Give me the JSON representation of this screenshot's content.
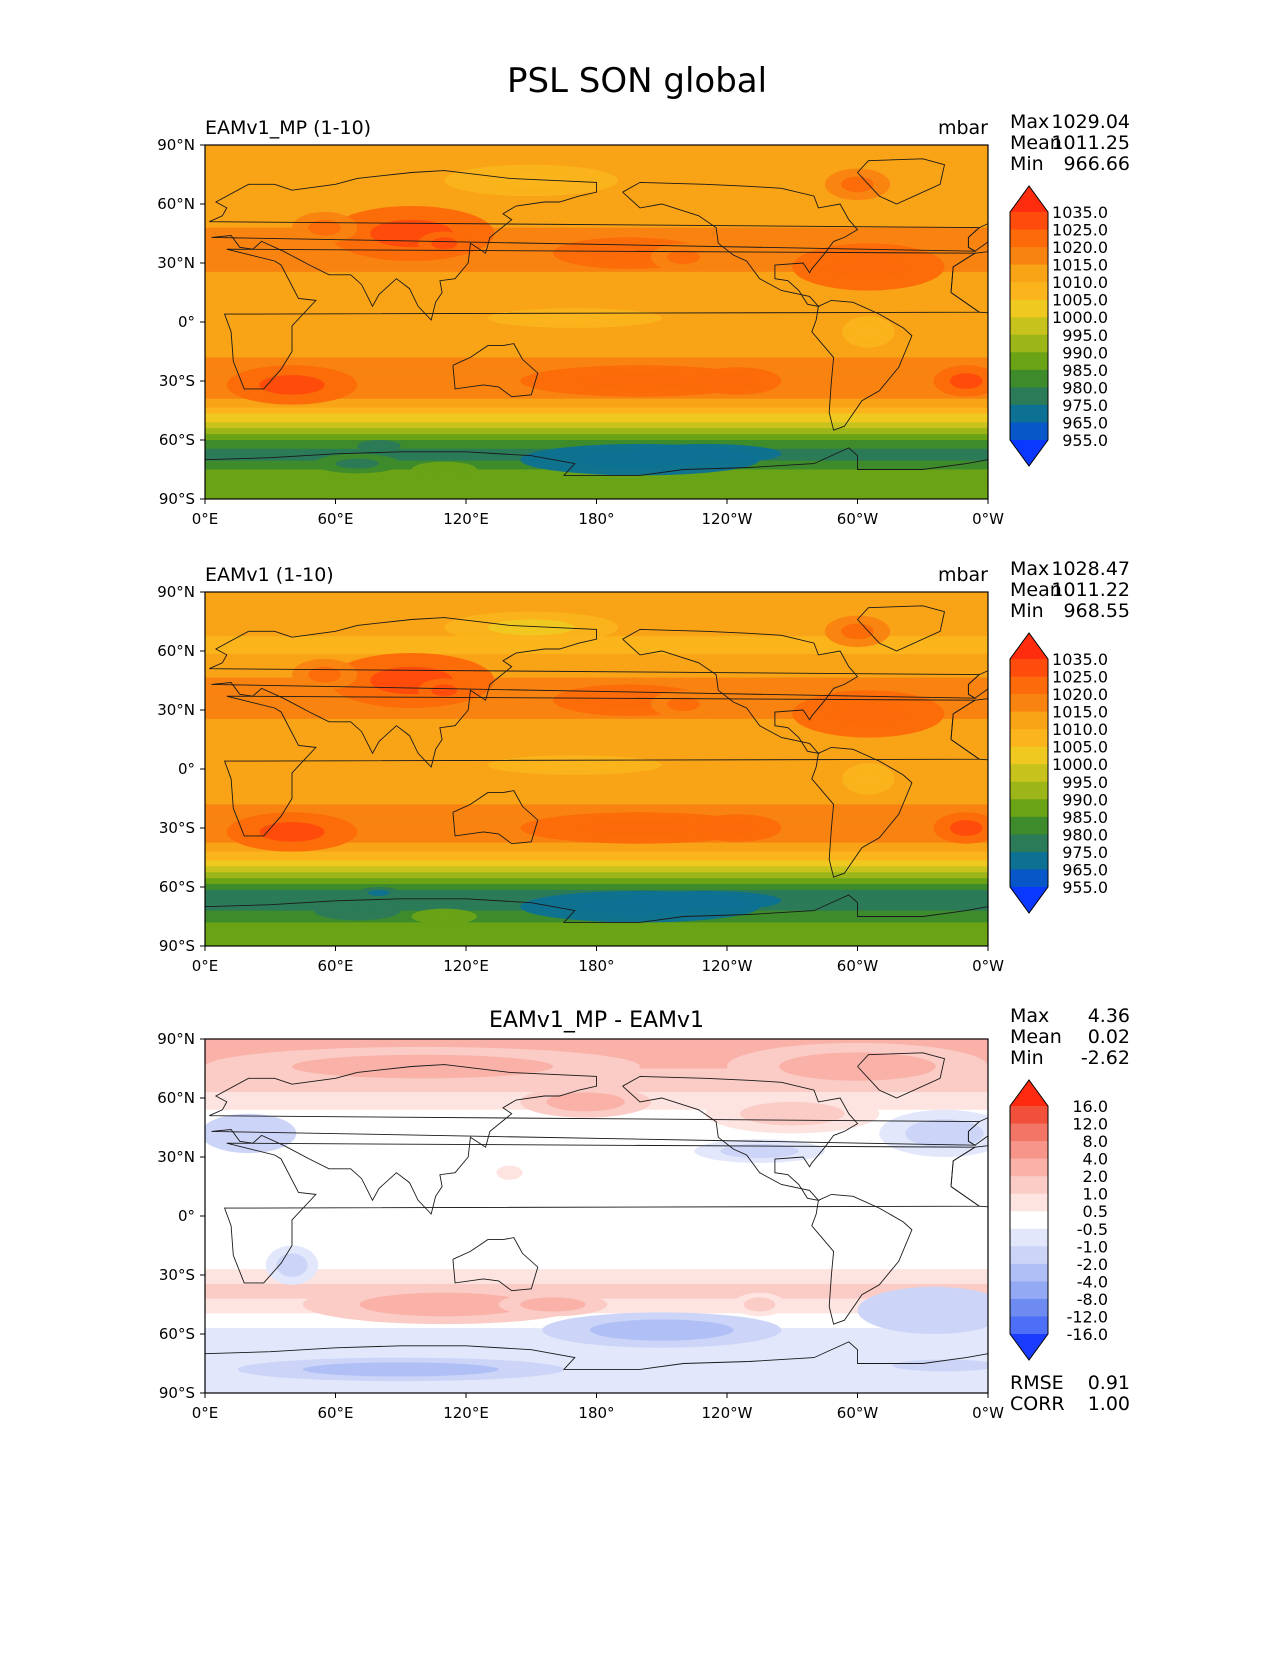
{
  "figure_title": "PSL SON global",
  "chart_data": [
    {
      "type": "heatmap",
      "title": "EAMv1_MP (1-10)",
      "units": "mbar",
      "xlabel": "",
      "ylabel": "",
      "x_ticks": [
        "0°E",
        "60°E",
        "120°E",
        "180°",
        "120°W",
        "60°W",
        "0°W"
      ],
      "y_ticks": [
        "90°N",
        "60°N",
        "30°N",
        "0°",
        "30°S",
        "60°S",
        "90°S"
      ],
      "xlim": [
        0,
        360
      ],
      "ylim": [
        -90,
        90
      ],
      "stats": [
        {
          "label": "Max",
          "value": "1029.04"
        },
        {
          "label": "Mean",
          "value": "1011.25"
        },
        {
          "label": "Min",
          "value": "966.66"
        }
      ],
      "colorbar": {
        "levels": [
          "1035.0",
          "1025.0",
          "1020.0",
          "1015.0",
          "1010.0",
          "1005.0",
          "1000.0",
          "995.0",
          "990.0",
          "985.0",
          "980.0",
          "975.0",
          "965.0",
          "955.0"
        ],
        "colors": [
          "#ff2d0e",
          "#ff4b0b",
          "#fc6a09",
          "#f98310",
          "#f9a317",
          "#fbb41b",
          "#f0c920",
          "#c8c21c",
          "#9cb518",
          "#6aa316",
          "#3e8b2c",
          "#2b7a58",
          "#0d7193",
          "#0757c8",
          "#0a38ff"
        ]
      },
      "zonal_profile": {
        "lat": [
          90,
          75,
          60,
          45,
          35,
          25,
          15,
          5,
          -5,
          -15,
          -25,
          -32,
          -40,
          -48,
          -55,
          -62,
          -68,
          -75,
          -82,
          -90
        ],
        "psl": [
          1014,
          1012,
          1010,
          1016,
          1017,
          1015,
          1012,
          1010,
          1010,
          1014,
          1018,
          1019,
          1014,
          1004,
          992,
          982,
          978,
          985,
          988,
          990
        ]
      }
    },
    {
      "type": "heatmap",
      "title": "EAMv1 (1-10)",
      "units": "mbar",
      "xlabel": "",
      "ylabel": "",
      "x_ticks": [
        "0°E",
        "60°E",
        "120°E",
        "180°",
        "120°W",
        "60°W",
        "0°W"
      ],
      "y_ticks": [
        "90°N",
        "60°N",
        "30°N",
        "0°",
        "30°S",
        "60°S",
        "90°S"
      ],
      "xlim": [
        0,
        360
      ],
      "ylim": [
        -90,
        90
      ],
      "stats": [
        {
          "label": "Max",
          "value": "1028.47"
        },
        {
          "label": "Mean",
          "value": "1011.22"
        },
        {
          "label": "Min",
          "value": "968.55"
        }
      ],
      "colorbar": {
        "levels": [
          "1035.0",
          "1025.0",
          "1020.0",
          "1015.0",
          "1010.0",
          "1005.0",
          "1000.0",
          "995.0",
          "990.0",
          "985.0",
          "980.0",
          "975.0",
          "965.0",
          "955.0"
        ],
        "colors": [
          "#ff2d0e",
          "#ff4b0b",
          "#fc6a09",
          "#f98310",
          "#f9a317",
          "#fbb41b",
          "#f0c920",
          "#c8c21c",
          "#9cb518",
          "#6aa316",
          "#3e8b2c",
          "#2b7a58",
          "#0d7193",
          "#0757c8",
          "#0a38ff"
        ]
      },
      "zonal_profile": {
        "lat": [
          90,
          75,
          60,
          45,
          35,
          25,
          15,
          5,
          -5,
          -15,
          -25,
          -32,
          -40,
          -48,
          -55,
          -62,
          -68,
          -75,
          -82,
          -90
        ],
        "psl": [
          1013,
          1011,
          1009,
          1016,
          1017,
          1015,
          1012,
          1010,
          1010,
          1014,
          1018,
          1019,
          1013,
          1003,
          990,
          980,
          977,
          983,
          987,
          989
        ]
      }
    },
    {
      "type": "heatmap",
      "title": "EAMv1_MP - EAMv1",
      "units": "",
      "xlabel": "",
      "ylabel": "",
      "x_ticks": [
        "0°E",
        "60°E",
        "120°E",
        "180°",
        "120°W",
        "60°W",
        "0°W"
      ],
      "y_ticks": [
        "90°N",
        "60°N",
        "30°N",
        "0°",
        "30°S",
        "60°S",
        "90°S"
      ],
      "xlim": [
        0,
        360
      ],
      "ylim": [
        -90,
        90
      ],
      "stats": [
        {
          "label": "Max",
          "value": "4.36"
        },
        {
          "label": "Mean",
          "value": "0.02"
        },
        {
          "label": "Min",
          "value": "-2.62"
        }
      ],
      "bottom_stats": [
        {
          "label": "RMSE",
          "value": "0.91"
        },
        {
          "label": "CORR",
          "value": "1.00"
        }
      ],
      "colorbar": {
        "levels": [
          "16.0",
          "12.0",
          "8.0",
          "4.0",
          "2.0",
          "1.0",
          "0.5",
          "-0.5",
          "-1.0",
          "-2.0",
          "-4.0",
          "-8.0",
          "-12.0",
          "-16.0"
        ],
        "colors": [
          "#ff2a10",
          "#f1503b",
          "#f27566",
          "#f7958a",
          "#f9b1a8",
          "#fbcbc5",
          "#fde4e1",
          "#ffffff",
          "#e2e7fb",
          "#ccd5f8",
          "#b0c0f6",
          "#93a9f4",
          "#6e8bf2",
          "#4d6ef6",
          "#1b3cff"
        ]
      },
      "zonal_profile": {
        "lat": [
          90,
          80,
          70,
          60,
          50,
          40,
          30,
          20,
          10,
          0,
          -10,
          -20,
          -30,
          -40,
          -50,
          -58,
          -65,
          -72,
          -80,
          -90
        ],
        "diff": [
          2.8,
          2.4,
          1.6,
          0.8,
          0.3,
          -0.2,
          0.1,
          0.0,
          0.0,
          0.0,
          -0.2,
          -0.3,
          0.8,
          1.2,
          0.4,
          -0.6,
          -0.8,
          -0.7,
          -1.0,
          -1.0
        ]
      }
    }
  ]
}
